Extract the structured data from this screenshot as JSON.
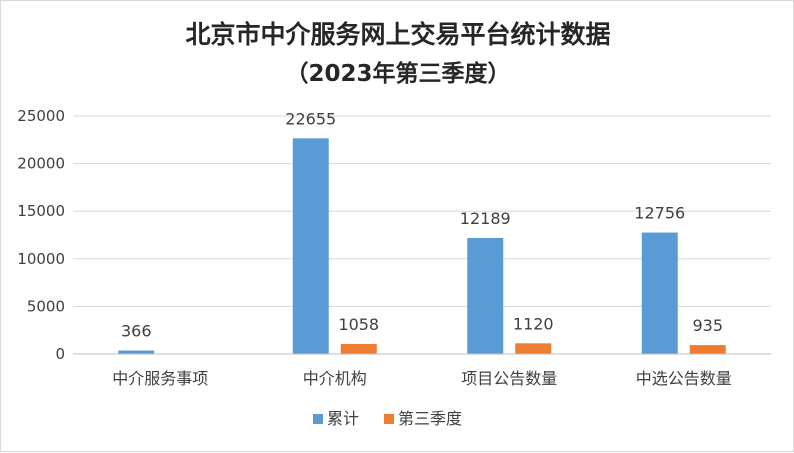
{
  "chart_data": {
    "type": "bar",
    "title_line1": "北京市中介服务网上交易平台统计数据",
    "title_line2": "（2023年第三季度）",
    "categories": [
      "中介服务事项",
      "中介机构",
      "项目公告数量",
      "中选公告数量"
    ],
    "series": [
      {
        "name": "累计",
        "values": [
          366,
          22655,
          12189,
          12756
        ],
        "color": "#5B9BD5"
      },
      {
        "name": "第三季度",
        "values": [
          null,
          1058,
          1120,
          935
        ],
        "color": "#ED7D31"
      }
    ],
    "ylim": [
      0,
      25000
    ],
    "yticks": [
      "0",
      "5000",
      "10000",
      "15000",
      "20000",
      "25000"
    ],
    "grid": true,
    "legend": "bottom",
    "data_labels": true
  }
}
